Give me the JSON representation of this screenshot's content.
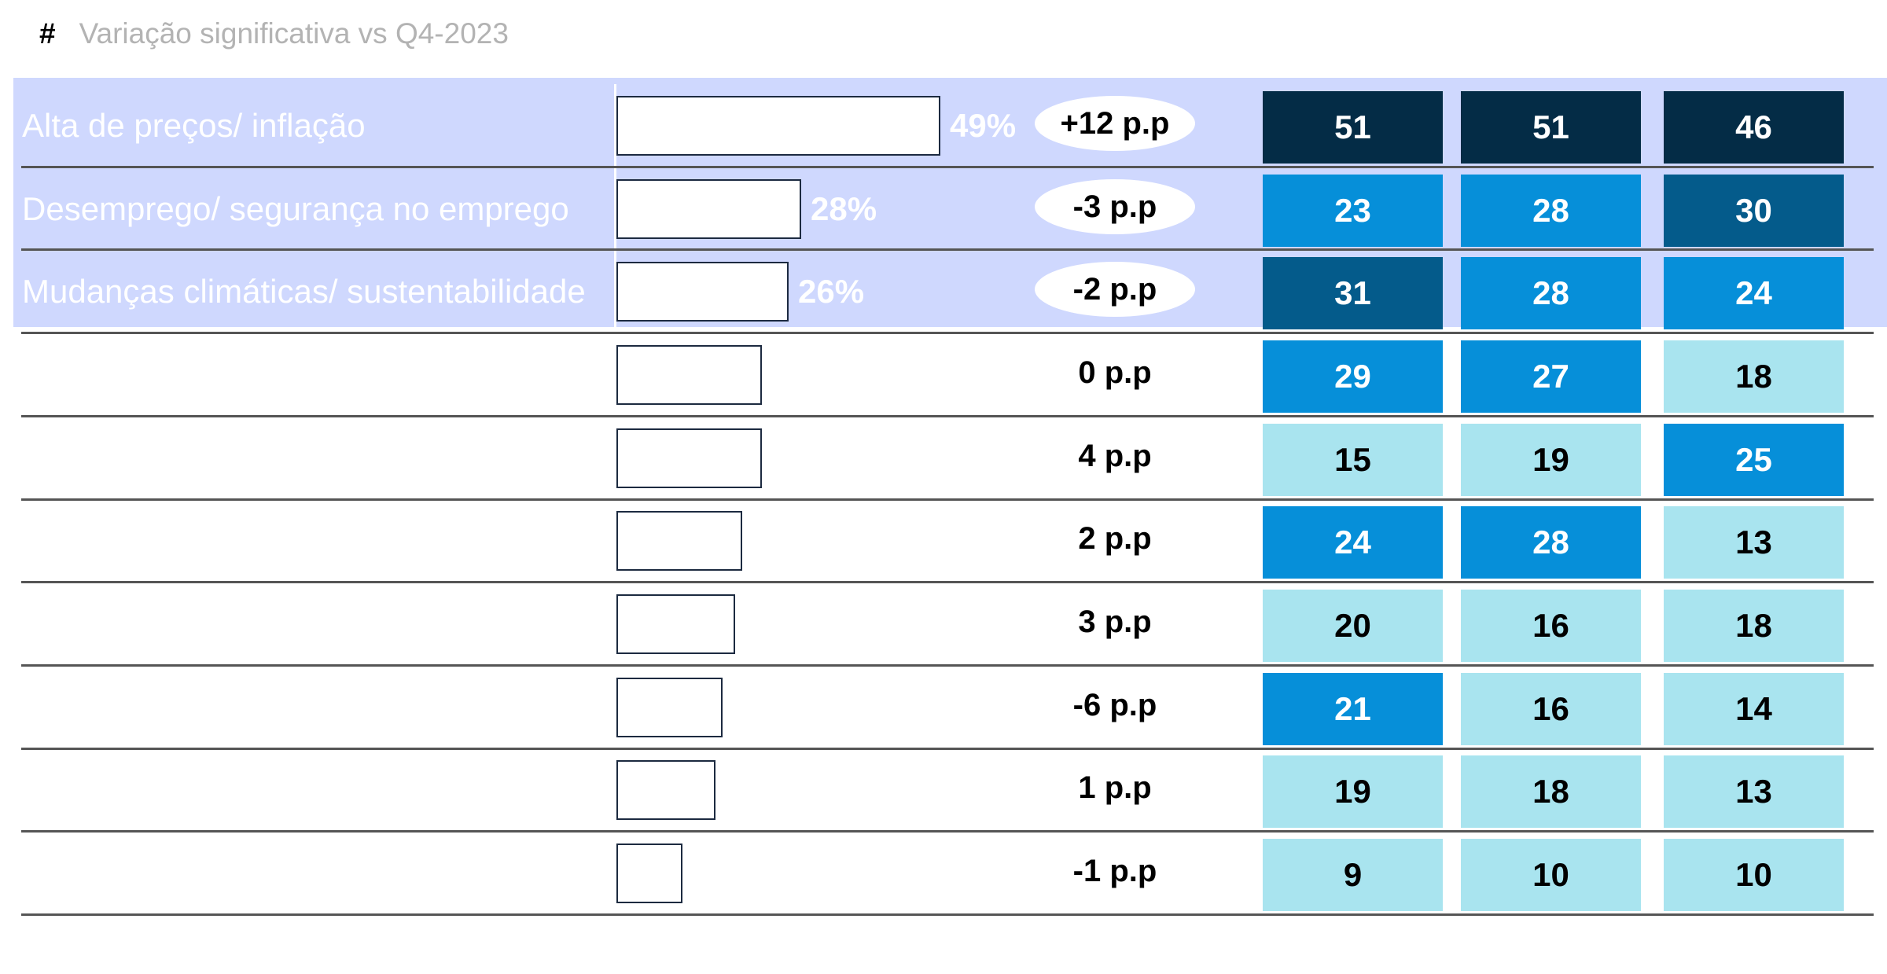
{
  "legend_note": {
    "symbol": "#",
    "text": "Variação significativa vs Q4-2023"
  },
  "colors": {
    "highlight": "#cfd8fe",
    "level_1": "#a9e4ef",
    "level_2": "#068fd9",
    "level_3": "#045b8b",
    "level_4": "#042c46"
  },
  "chart_data": {
    "type": "table",
    "rows": [
      {
        "label": "Alta de preços/ inflação",
        "percent_label": "49%",
        "value": 49,
        "change": "+12 p.p",
        "significant": true,
        "highlighted": true,
        "cells": [
          {
            "value": "51",
            "level": 4
          },
          {
            "value": "51",
            "level": 4
          },
          {
            "value": "46",
            "level": 4
          }
        ]
      },
      {
        "label": "Desemprego/ segurança no emprego",
        "percent_label": "28%",
        "value": 28,
        "change": "-3 p.p",
        "significant": true,
        "highlighted": true,
        "cells": [
          {
            "value": "23",
            "level": 2
          },
          {
            "value": "28",
            "level": 2
          },
          {
            "value": "30",
            "level": 3
          }
        ]
      },
      {
        "label": "Mudanças climáticas/ sustentabilidade",
        "percent_label": "26%",
        "value": 26,
        "change": "-2 p.p",
        "significant": true,
        "highlighted": true,
        "cells": [
          {
            "value": "31",
            "level": 3
          },
          {
            "value": "28",
            "level": 2
          },
          {
            "value": "24",
            "level": 2
          }
        ]
      },
      {
        "label": "",
        "percent_label": "",
        "value": 22,
        "change": "0 p.p",
        "significant": false,
        "highlighted": false,
        "cells": [
          {
            "value": "29",
            "level": 2
          },
          {
            "value": "27",
            "level": 2
          },
          {
            "value": "18",
            "level": 1
          }
        ]
      },
      {
        "label": "",
        "percent_label": "",
        "value": 22,
        "change": "4 p.p",
        "significant": false,
        "highlighted": false,
        "cells": [
          {
            "value": "15",
            "level": 1
          },
          {
            "value": "19",
            "level": 1
          },
          {
            "value": "25",
            "level": 2
          }
        ]
      },
      {
        "label": "",
        "percent_label": "",
        "value": 19,
        "change": "2 p.p",
        "significant": false,
        "highlighted": false,
        "cells": [
          {
            "value": "24",
            "level": 2
          },
          {
            "value": "28",
            "level": 2
          },
          {
            "value": "13",
            "level": 1
          }
        ]
      },
      {
        "label": "",
        "percent_label": "",
        "value": 18,
        "change": "3 p.p",
        "significant": false,
        "highlighted": false,
        "cells": [
          {
            "value": "20",
            "level": 1
          },
          {
            "value": "16",
            "level": 1
          },
          {
            "value": "18",
            "level": 1
          }
        ]
      },
      {
        "label": "",
        "percent_label": "",
        "value": 16,
        "change": "-6 p.p",
        "significant": false,
        "highlighted": false,
        "cells": [
          {
            "value": "21",
            "level": 2
          },
          {
            "value": "16",
            "level": 1
          },
          {
            "value": "14",
            "level": 1
          }
        ]
      },
      {
        "label": "",
        "percent_label": "",
        "value": 15,
        "change": "1 p.p",
        "significant": false,
        "highlighted": false,
        "cells": [
          {
            "value": "19",
            "level": 1
          },
          {
            "value": "18",
            "level": 1
          },
          {
            "value": "13",
            "level": 1
          }
        ]
      },
      {
        "label": "",
        "percent_label": "",
        "value": 10,
        "change": "-1 p.p",
        "significant": false,
        "highlighted": false,
        "cells": [
          {
            "value": "9",
            "level": 1
          },
          {
            "value": "10",
            "level": 1
          },
          {
            "value": "10",
            "level": 1
          }
        ]
      }
    ]
  }
}
